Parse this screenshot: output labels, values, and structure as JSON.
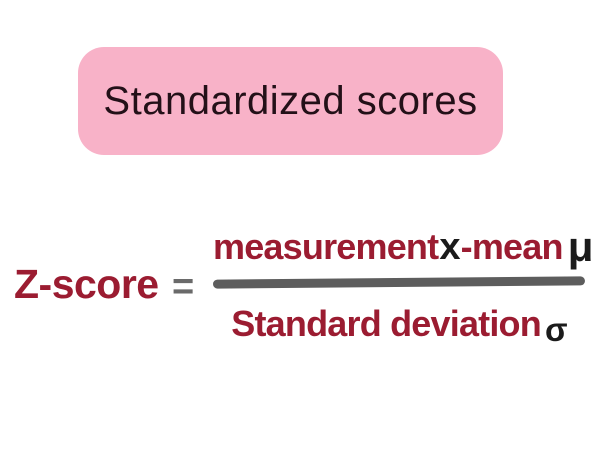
{
  "badge": {
    "label": "Standardized scores",
    "bg_color": "#f8b2c8",
    "text_color": "#231018"
  },
  "formula": {
    "lhs": "Z-score",
    "equals": "=",
    "numerator": {
      "measurement_label": "measurement",
      "x_symbol": "x",
      "mean_label": "-mean",
      "mu_symbol": "μ"
    },
    "denominator": {
      "label": "Standard deviation",
      "sigma_symbol": "σ"
    },
    "colors": {
      "crimson": "#9b1c31",
      "black": "#1b1b1b",
      "fraction_bar_gray": "#5d5d5d",
      "equals_gray": "#6a6a6a"
    }
  },
  "background_color": "#ffffff"
}
